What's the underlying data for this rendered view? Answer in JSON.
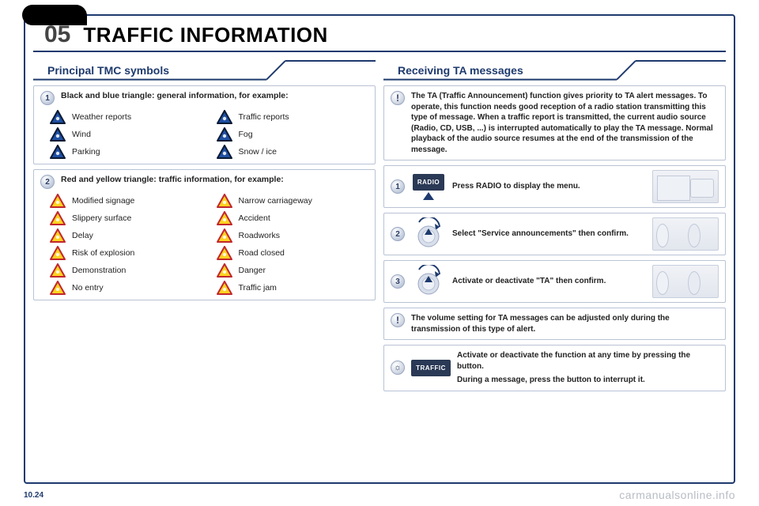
{
  "chapter": {
    "num": "05",
    "title": "TRAFFIC INFORMATION"
  },
  "left": {
    "section_title": "Principal TMC symbols",
    "group1": {
      "badge": "1",
      "heading": "Black and blue triangle: general information, for example:",
      "tri_border": "#0a1a33",
      "tri_fill": "#1f4fa3",
      "items": [
        {
          "label": "Weather reports"
        },
        {
          "label": "Traffic reports"
        },
        {
          "label": "Wind"
        },
        {
          "label": "Fog"
        },
        {
          "label": "Parking"
        },
        {
          "label": "Snow / ice"
        }
      ]
    },
    "group2": {
      "badge": "2",
      "heading": "Red and yellow triangle: traffic information, for example:",
      "tri_border": "#c1272d",
      "tri_fill": "#ffd21f",
      "items": [
        {
          "label": "Modified signage"
        },
        {
          "label": "Narrow carriageway"
        },
        {
          "label": "Slippery surface"
        },
        {
          "label": "Accident"
        },
        {
          "label": "Delay"
        },
        {
          "label": "Roadworks"
        },
        {
          "label": "Risk of explosion"
        },
        {
          "label": "Road closed"
        },
        {
          "label": "Demonstration"
        },
        {
          "label": "Danger"
        },
        {
          "label": "No entry"
        },
        {
          "label": "Traffic jam"
        }
      ]
    }
  },
  "right": {
    "section_title": "Receiving TA messages",
    "intro": "The TA (Traffic Announcement) function gives priority to TA alert messages. To operate, this function needs good reception of a radio station transmitting this type of message. When a traffic report is transmitted, the current audio source (Radio, CD, USB, ...) is interrupted automatically to play the TA message. Normal playback of the audio source resumes at the end of the transmission of the message.",
    "steps": [
      {
        "badge": "1",
        "btn": "RADIO",
        "text": "Press RADIO to display the menu."
      },
      {
        "badge": "2",
        "btn": "",
        "text": "Select \"Service announcements\" then confirm."
      },
      {
        "badge": "3",
        "btn": "",
        "text": "Activate or deactivate \"TA\" then confirm."
      }
    ],
    "note": "The volume setting for TA messages can be adjusted only during the transmission of this type of alert.",
    "tip_btn": "TRAFFIC",
    "tip1": "Activate or deactivate the function at any time by pressing the button.",
    "tip2": "During a message, press the button to interrupt it."
  },
  "footer": {
    "page": "10.24",
    "watermark": "carmanualsonline.info"
  },
  "colors": {
    "brand": "#1e3a6e"
  }
}
